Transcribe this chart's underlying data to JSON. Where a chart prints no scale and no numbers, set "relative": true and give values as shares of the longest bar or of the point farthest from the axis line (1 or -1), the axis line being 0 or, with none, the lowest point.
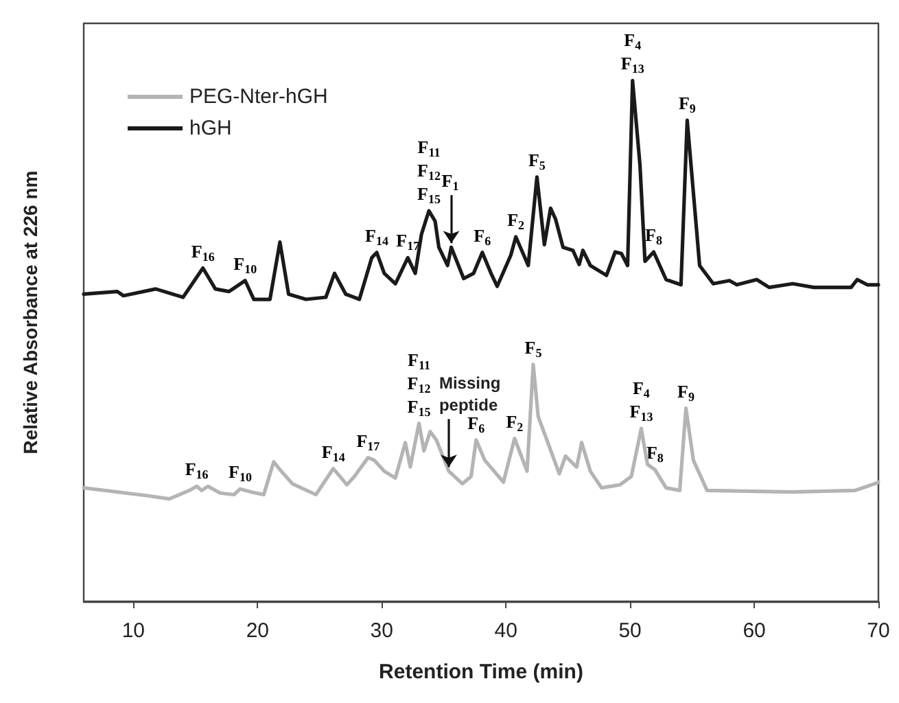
{
  "chart_data": {
    "type": "line",
    "relative": true,
    "xlabel": "Retention Time (min)",
    "ylabel": "Relative Absorbance at 226 nm",
    "xlim": [
      6,
      70
    ],
    "xticks": [
      10,
      20,
      30,
      40,
      50,
      60,
      70
    ],
    "legend": "top left",
    "grid": false,
    "marker": "none",
    "line_style": "solid",
    "series": [
      {
        "name": "PEG-Nter-hGH",
        "color": "#b4b4b4",
        "x": [
          6,
          11.1,
          12.9,
          14.5,
          15.1,
          15.5,
          16.0,
          17.0,
          18.1,
          18.6,
          19.5,
          20.5,
          21.3,
          21.8,
          22.8,
          24.7,
          26.1,
          27.2,
          27.8,
          28.9,
          29.4,
          30.2,
          31.1,
          31.9,
          32.3,
          33.0,
          33.4,
          33.9,
          34.4,
          35.4,
          36.5,
          37.2,
          37.6,
          38.3,
          39.8,
          40.7,
          41.7,
          42.2,
          42.6,
          43.3,
          44.3,
          44.8,
          45.7,
          46.1,
          46.8,
          47.7,
          49.2,
          50.1,
          50.9,
          51.4,
          52.0,
          52.9,
          54.0,
          54.5,
          55.1,
          56.2,
          63.0,
          68.1,
          69.7,
          70
        ],
        "values": [
          0.218,
          0.203,
          0.197,
          0.213,
          0.221,
          0.213,
          0.221,
          0.208,
          0.205,
          0.216,
          0.21,
          0.205,
          0.268,
          0.253,
          0.226,
          0.205,
          0.255,
          0.224,
          0.24,
          0.276,
          0.271,
          0.25,
          0.237,
          0.305,
          0.258,
          0.342,
          0.289,
          0.326,
          0.31,
          0.25,
          0.226,
          0.24,
          0.31,
          0.271,
          0.229,
          0.313,
          0.25,
          0.455,
          0.355,
          0.31,
          0.245,
          0.279,
          0.258,
          0.305,
          0.25,
          0.218,
          0.224,
          0.24,
          0.332,
          0.263,
          0.253,
          0.218,
          0.213,
          0.371,
          0.271,
          0.213,
          0.21,
          0.213,
          0.226,
          0.229
        ]
      },
      {
        "name": "hGH",
        "color": "#1a1a1a",
        "x": [
          6,
          8.7,
          9.2,
          11.8,
          14.0,
          15.6,
          16.6,
          17.7,
          19.0,
          19.7,
          21.0,
          21.8,
          22.5,
          23.9,
          25.5,
          26.2,
          27.1,
          28.2,
          29.2,
          29.6,
          30.2,
          31.1,
          32.1,
          32.7,
          33.2,
          33.8,
          34.3,
          34.6,
          35.3,
          35.6,
          36.1,
          36.6,
          37.4,
          38.1,
          38.8,
          39.3,
          40.4,
          40.8,
          41.8,
          42.5,
          43.1,
          43.6,
          44.0,
          44.6,
          45.4,
          45.9,
          46.2,
          46.8,
          48.1,
          48.8,
          49.3,
          49.8,
          50.2,
          50.8,
          51.2,
          51.9,
          52.9,
          54.1,
          54.6,
          55.6,
          56.7,
          58.0,
          58.6,
          60.2,
          61.2,
          63.1,
          64.8,
          67.8,
          68.3,
          69.1,
          70
        ],
        "values": [
          0.59,
          0.595,
          0.587,
          0.6,
          0.584,
          0.64,
          0.6,
          0.595,
          0.616,
          0.58,
          0.58,
          0.69,
          0.59,
          0.58,
          0.584,
          0.63,
          0.59,
          0.58,
          0.66,
          0.67,
          0.63,
          0.61,
          0.66,
          0.63,
          0.705,
          0.75,
          0.73,
          0.68,
          0.645,
          0.68,
          0.65,
          0.62,
          0.63,
          0.67,
          0.63,
          0.605,
          0.665,
          0.7,
          0.645,
          0.815,
          0.685,
          0.755,
          0.734,
          0.68,
          0.674,
          0.647,
          0.674,
          0.645,
          0.626,
          0.671,
          0.668,
          0.645,
          1,
          0.837,
          0.653,
          0.671,
          0.618,
          0.608,
          0.924,
          0.645,
          0.61,
          0.616,
          0.608,
          0.618,
          0.603,
          0.61,
          0.603,
          0.603,
          0.618,
          0.608,
          0.608
        ]
      }
    ],
    "annotations": [
      {
        "text": "F$_{16}$",
        "x": 15.6,
        "y": 0.64
      },
      {
        "text": "F$_{10}$",
        "x": 19.0,
        "y": 0.616
      },
      {
        "text": "F$_{14}$",
        "x": 29.6,
        "y": 0.67
      },
      {
        "text": "F$_{17}$",
        "x": 32.1,
        "y": 0.66
      },
      {
        "text": "F$_{11}$\nF$_{12}$\nF$_{15}$",
        "x": 33.8,
        "y": 0.75
      },
      {
        "text": "F$_{1}$",
        "x": 35.6,
        "y": 0.68
      },
      {
        "text": "F$_{6}$",
        "x": 38.1,
        "y": 0.67
      },
      {
        "text": "F$_{2}$",
        "x": 40.8,
        "y": 0.7
      },
      {
        "text": "F$_{5}$",
        "x": 42.5,
        "y": 0.815
      },
      {
        "text": "F$_{4}$\nF$_{13}$",
        "x": 50.2,
        "y": 1
      },
      {
        "text": "F$_{8}$",
        "x": 51.9,
        "y": 0.671
      },
      {
        "text": "F$_{9}$",
        "x": 54.6,
        "y": 0.924
      },
      {
        "text": "F$_{16}$",
        "x": 15.1,
        "y": 0.221
      },
      {
        "text": "F$_{10}$",
        "x": 18.6,
        "y": 0.216
      },
      {
        "text": "F$_{14}$",
        "x": 26.1,
        "y": 0.255
      },
      {
        "text": "F$_{17}$",
        "x": 28.9,
        "y": 0.276
      },
      {
        "text": "F$_{11}$\nF$_{12}$\nF$_{15}$",
        "x": 33.0,
        "y": 0.342
      },
      {
        "text": "Missing peptide",
        "x": 35.4,
        "y": 0.25
      },
      {
        "text": "F$_{6}$",
        "x": 37.6,
        "y": 0.31
      },
      {
        "text": "F$_{2}$",
        "x": 40.7,
        "y": 0.313
      },
      {
        "text": "F$_{5}$",
        "x": 42.2,
        "y": 0.455
      },
      {
        "text": "F$_{4}$\nF$_{13}$",
        "x": 50.9,
        "y": 0.332
      },
      {
        "text": "F$_{8}$",
        "x": 52.0,
        "y": 0.253
      },
      {
        "text": "F$_{9}$",
        "x": 54.5,
        "y": 0.371
      }
    ]
  }
}
